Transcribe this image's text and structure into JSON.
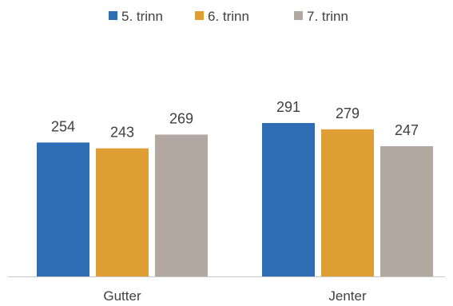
{
  "chart_data": {
    "type": "bar",
    "categories": [
      "Gutter",
      "Jenter"
    ],
    "series": [
      {
        "name": "5. trinn",
        "values": [
          254,
          291
        ],
        "color": "#2e6db4"
      },
      {
        "name": "6. trinn",
        "values": [
          243,
          279
        ],
        "color": "#e09f35"
      },
      {
        "name": "7. trinn",
        "values": [
          269,
          247
        ],
        "color": "#b1a9a1"
      }
    ],
    "title": "",
    "xlabel": "",
    "ylabel": "",
    "ylim": [
      0,
      300
    ],
    "data_labels": true,
    "grid": false,
    "legend_position": "top-center",
    "axis_color": "#c8c8c8",
    "text_color": "#404040"
  }
}
